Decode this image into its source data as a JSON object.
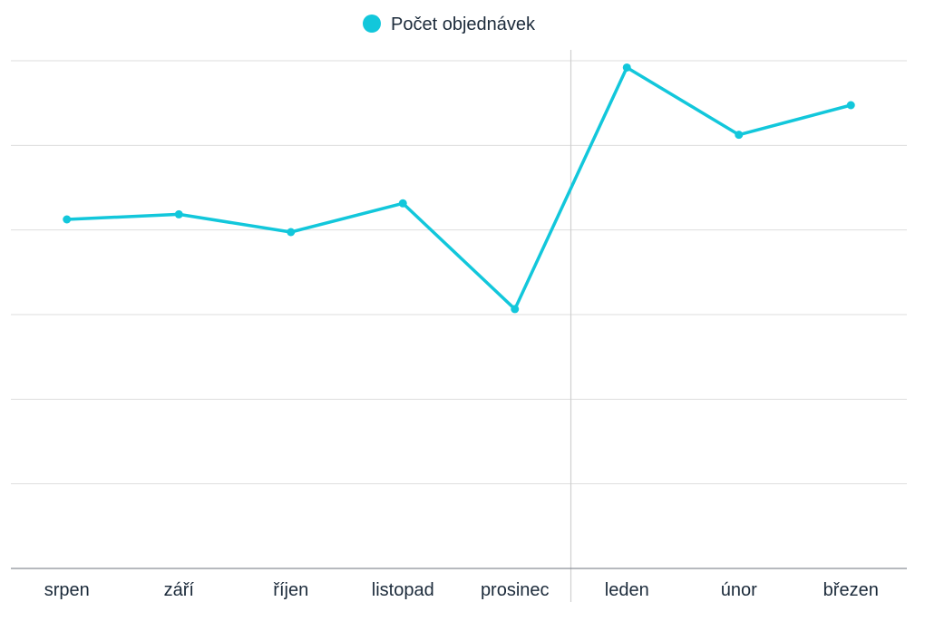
{
  "chart_data": {
    "type": "line",
    "categories": [
      "srpen",
      "září",
      "říjen",
      "listopad",
      "prosinec",
      "leden",
      "únor",
      "březen"
    ],
    "series": [
      {
        "name": "Počet objednávek",
        "color": "#12c7db",
        "values": [
          82.5,
          83.7,
          79.5,
          86.3,
          61.3,
          118.4,
          102.5,
          109.5
        ]
      }
    ],
    "ylim": [
      0,
      120
    ],
    "grid": true,
    "legend": "top-center",
    "divider_after_category": "prosinec"
  }
}
